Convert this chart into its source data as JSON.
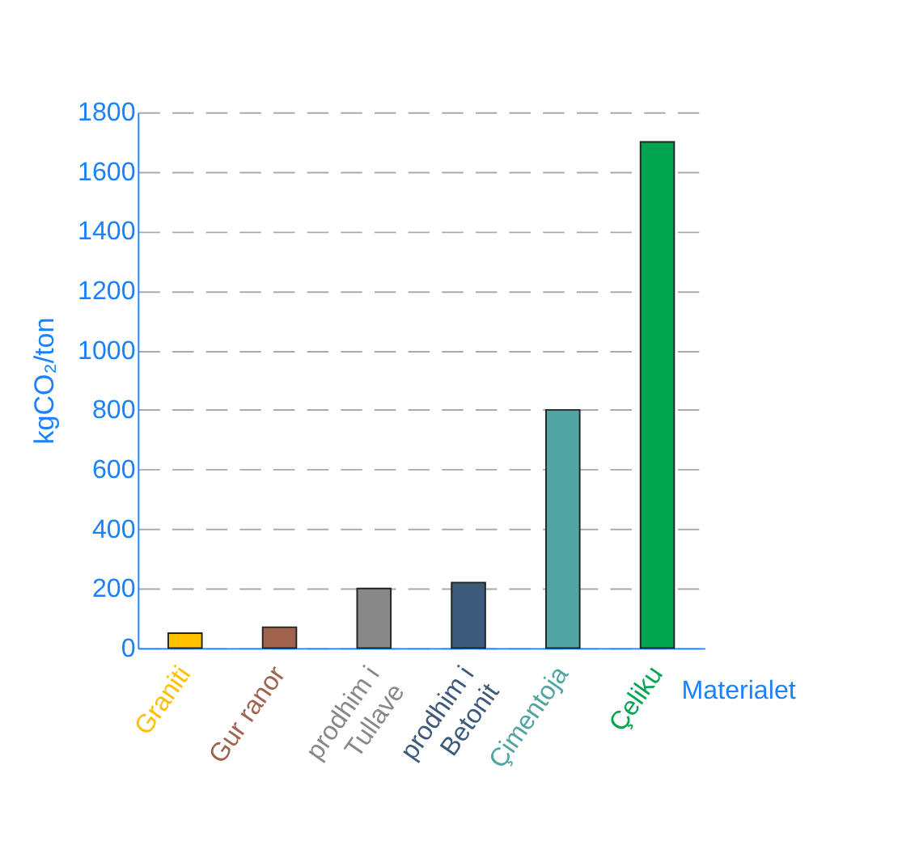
{
  "chart_data": {
    "type": "bar",
    "categories": [
      "Graniti",
      "Gur ranor",
      "prodhim i Tullave",
      "prodhim i Betonit",
      "Çimentoja",
      "Çeliku"
    ],
    "values": [
      50,
      70,
      200,
      220,
      800,
      1700
    ],
    "colors": [
      "#ffc000",
      "#a0644e",
      "#888888",
      "#3d5a7a",
      "#52a5a2",
      "#00a550"
    ],
    "ylabel": "kgCO₂/ton",
    "xlabel": "Materialet",
    "ylim": [
      0,
      1800
    ],
    "yticks": [
      0,
      200,
      400,
      600,
      800,
      1000,
      1200,
      1400,
      1600,
      1800
    ],
    "grid": "y"
  }
}
